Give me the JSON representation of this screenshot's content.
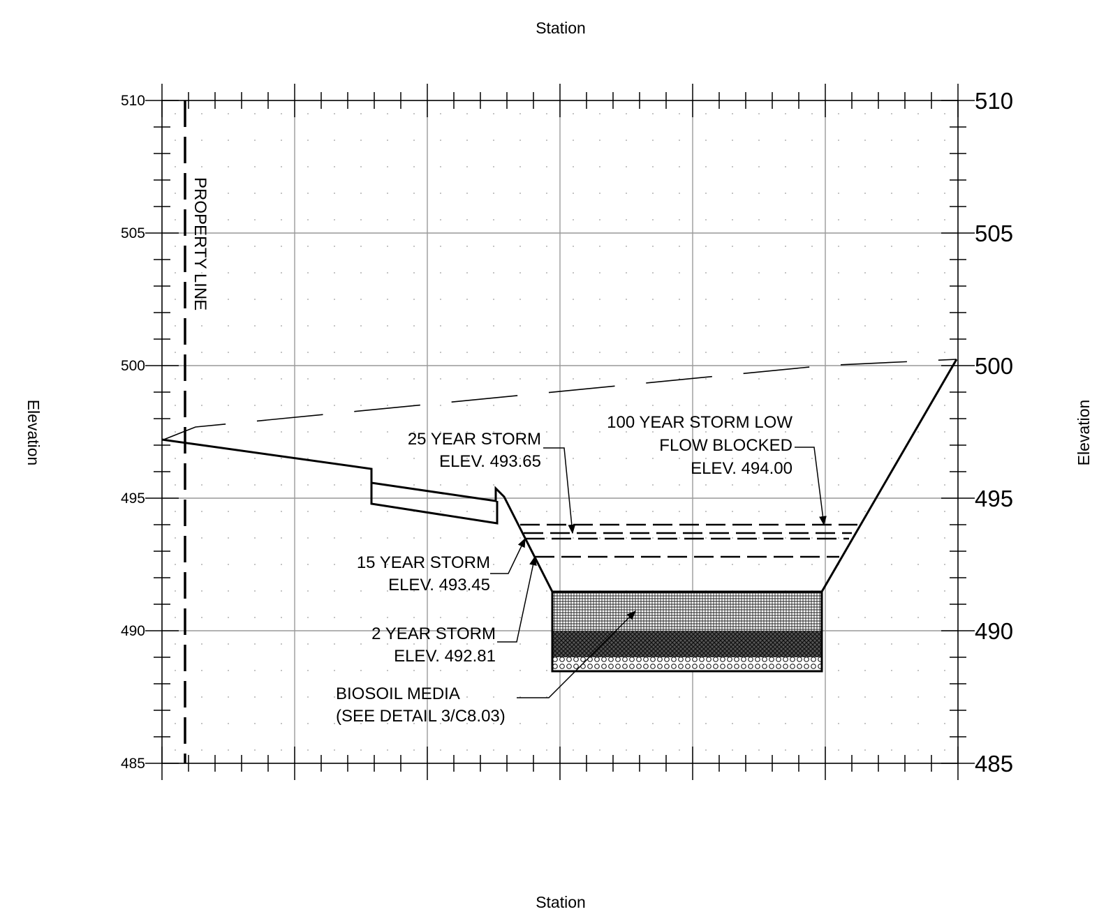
{
  "titles": {
    "top": "Station",
    "bottom": "Station",
    "left": "Elevation",
    "right": "Elevation"
  },
  "elevation_axis": {
    "min": 485,
    "max": 510,
    "major_step": 5,
    "left_labels": [
      "510",
      "505",
      "500",
      "495",
      "490",
      "485"
    ],
    "right_labels": [
      "510",
      "505",
      "500",
      "495",
      "490",
      "485"
    ]
  },
  "annotations": {
    "property_line": "PROPERTY LINE",
    "storm_25": {
      "line1": "25 YEAR STORM",
      "line2": "ELEV. 493.65",
      "elevation": 493.65
    },
    "storm_100": {
      "line1": "100 YEAR STORM LOW",
      "line2": "FLOW BLOCKED",
      "line3": "ELEV. 494.00",
      "elevation": 494.0
    },
    "storm_15": {
      "line1": "15 YEAR STORM",
      "line2": "ELEV. 493.45",
      "elevation": 493.45
    },
    "storm_2": {
      "line1": "2 YEAR STORM",
      "line2": "ELEV. 492.81",
      "elevation": 492.81
    },
    "biosoil": {
      "line1": "BIOSOIL MEDIA",
      "line2": "(SEE DETAIL 3/C8.03)"
    }
  },
  "colors": {
    "line": "#000000",
    "grid": "#999999",
    "background": "#ffffff"
  }
}
